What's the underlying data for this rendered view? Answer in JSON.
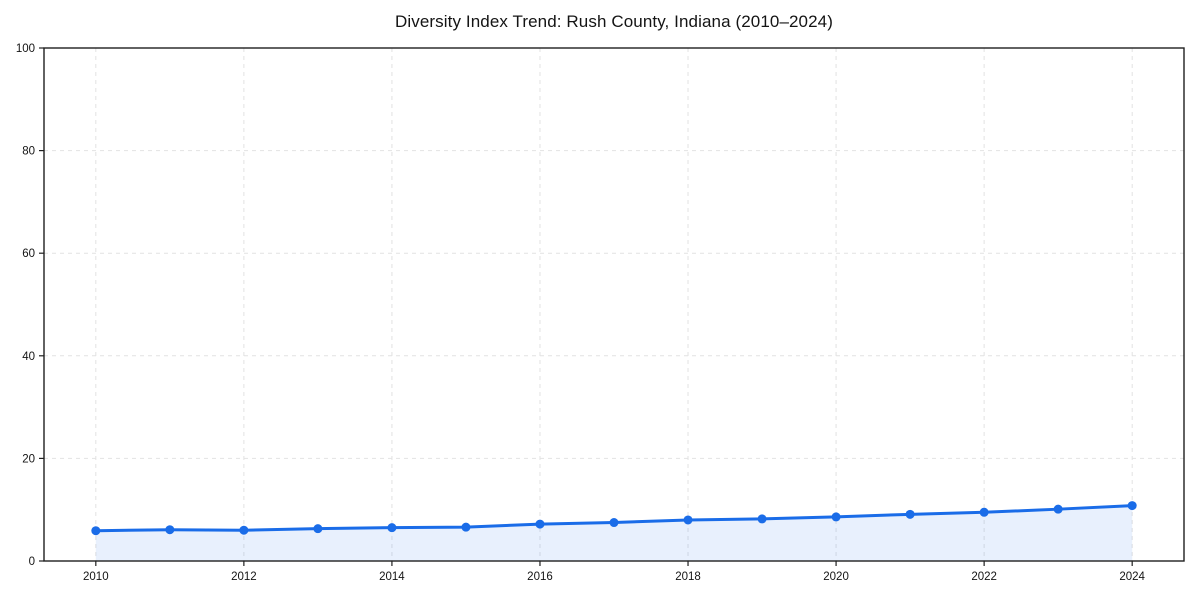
{
  "chart_data": {
    "type": "line",
    "title": "Diversity Index Trend: Rush County, Indiana (2010–2024)",
    "x": [
      2010,
      2011,
      2012,
      2013,
      2014,
      2015,
      2016,
      2017,
      2018,
      2019,
      2020,
      2021,
      2022,
      2023,
      2024
    ],
    "series": [
      {
        "name": "Diversity Index",
        "values": [
          5.9,
          6.1,
          6.0,
          6.3,
          6.5,
          6.6,
          7.2,
          7.5,
          8.0,
          8.2,
          8.6,
          9.1,
          9.5,
          10.1,
          10.8
        ]
      }
    ],
    "xlabel": "",
    "ylabel": "",
    "xlim": [
      2009.3,
      2024.7
    ],
    "ylim": [
      0,
      100
    ],
    "xticks": [
      2010,
      2012,
      2014,
      2016,
      2018,
      2020,
      2022,
      2024
    ],
    "yticks": [
      0,
      20,
      40,
      60,
      80,
      100
    ],
    "grid": "dashed light-gray, horizontal at yticks and vertical at xticks",
    "legend_position": "none",
    "colors": {
      "line": "#1a6ce8",
      "marker": "#1a6ce8",
      "area_fill": "rgba(26,108,232,0.10)",
      "gridline": "#e2e2e2",
      "spine": "#1f1f1f",
      "tick_label": "#141414",
      "background": "#ffffff"
    }
  }
}
